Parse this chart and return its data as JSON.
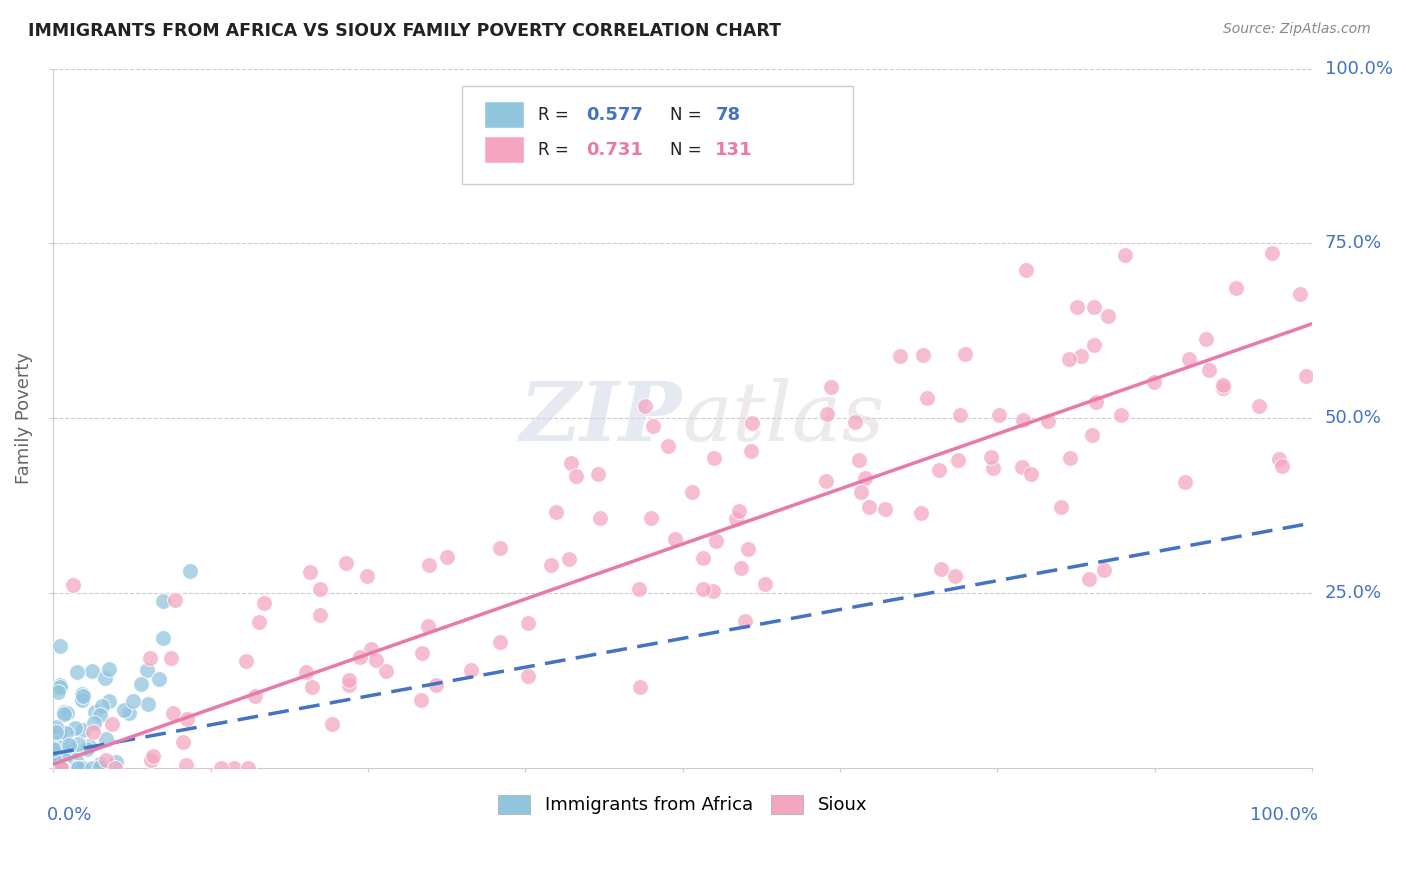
{
  "title": "IMMIGRANTS FROM AFRICA VS SIOUX FAMILY POVERTY CORRELATION CHART",
  "source": "Source: ZipAtlas.com",
  "ylabel": "Family Poverty",
  "blue_R": 0.577,
  "blue_N": 78,
  "pink_R": 0.731,
  "pink_N": 131,
  "blue_color": "#92c5de",
  "pink_color": "#f4a6c0",
  "blue_line_color": "#4472c4",
  "pink_line_color": "#e87aaa",
  "blue_line_dash": [
    6,
    3
  ],
  "legend_blue_label": "Immigrants from Africa",
  "legend_pink_label": "Sioux",
  "watermark_zip": "ZIP",
  "watermark_atlas": "atlas",
  "background_color": "#ffffff",
  "ytick_vals": [
    0,
    25,
    50,
    75,
    100
  ],
  "ytick_labels": [
    "",
    "25.0%",
    "50.0%",
    "75.0%",
    "100.0%"
  ],
  "blue_seed": 42,
  "pink_seed": 99
}
